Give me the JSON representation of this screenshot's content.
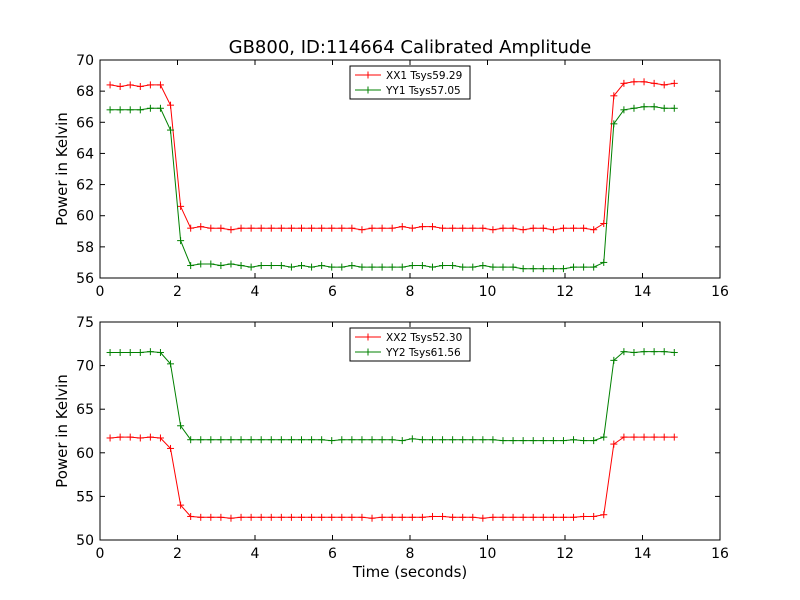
{
  "chart_data": {
    "title": "GB800, ID:114664 Calibrated Amplitude",
    "panels": [
      {
        "type": "line",
        "xlabel": "",
        "ylabel": "Power in Kelvin",
        "xlim": [
          0,
          16
        ],
        "ylim": [
          56,
          70
        ],
        "xticks": [
          0,
          2,
          4,
          6,
          8,
          10,
          12,
          14,
          16
        ],
        "yticks": [
          56,
          58,
          60,
          62,
          64,
          66,
          68,
          70
        ],
        "legend_position": "top-center",
        "x": [
          0.26,
          0.52,
          0.78,
          1.04,
          1.3,
          1.56,
          1.82,
          2.08,
          2.34,
          2.6,
          2.86,
          3.12,
          3.38,
          3.64,
          3.9,
          4.16,
          4.42,
          4.68,
          4.94,
          5.2,
          5.46,
          5.72,
          5.98,
          6.24,
          6.5,
          6.76,
          7.02,
          7.28,
          7.54,
          7.8,
          8.06,
          8.32,
          8.58,
          8.84,
          9.1,
          9.36,
          9.62,
          9.88,
          10.14,
          10.4,
          10.66,
          10.92,
          11.18,
          11.44,
          11.7,
          11.96,
          12.22,
          12.48,
          12.74,
          13.0,
          13.26,
          13.52,
          13.78,
          14.04,
          14.3,
          14.56,
          14.82
        ],
        "series": [
          {
            "name": "XX1 Tsys59.29",
            "color": "#ff0000",
            "values": [
              68.4,
              68.3,
              68.4,
              68.3,
              68.4,
              68.4,
              67.1,
              60.6,
              59.2,
              59.3,
              59.2,
              59.2,
              59.1,
              59.2,
              59.2,
              59.2,
              59.2,
              59.2,
              59.2,
              59.2,
              59.2,
              59.2,
              59.2,
              59.2,
              59.2,
              59.1,
              59.2,
              59.2,
              59.2,
              59.3,
              59.2,
              59.3,
              59.3,
              59.2,
              59.2,
              59.2,
              59.2,
              59.2,
              59.1,
              59.2,
              59.2,
              59.1,
              59.2,
              59.2,
              59.1,
              59.2,
              59.2,
              59.2,
              59.1,
              59.5,
              67.7,
              68.5,
              68.6,
              68.6,
              68.5,
              68.4,
              68.5
            ]
          },
          {
            "name": "YY1 Tsys57.05",
            "color": "#008000",
            "values": [
              66.8,
              66.8,
              66.8,
              66.8,
              66.9,
              66.9,
              65.5,
              58.4,
              56.8,
              56.9,
              56.9,
              56.8,
              56.9,
              56.8,
              56.7,
              56.8,
              56.8,
              56.8,
              56.7,
              56.8,
              56.7,
              56.8,
              56.7,
              56.7,
              56.8,
              56.7,
              56.7,
              56.7,
              56.7,
              56.7,
              56.8,
              56.8,
              56.7,
              56.8,
              56.8,
              56.7,
              56.7,
              56.8,
              56.7,
              56.7,
              56.7,
              56.6,
              56.6,
              56.6,
              56.6,
              56.6,
              56.7,
              56.7,
              56.7,
              57.0,
              65.9,
              66.8,
              66.9,
              67.0,
              67.0,
              66.9,
              66.9
            ]
          }
        ]
      },
      {
        "type": "line",
        "xlabel": "Time (seconds)",
        "ylabel": "Power in Kelvin",
        "xlim": [
          0,
          16
        ],
        "ylim": [
          50,
          75
        ],
        "xticks": [
          0,
          2,
          4,
          6,
          8,
          10,
          12,
          14,
          16
        ],
        "yticks": [
          50,
          55,
          60,
          65,
          70,
          75
        ],
        "legend_position": "top-center",
        "x": [
          0.26,
          0.52,
          0.78,
          1.04,
          1.3,
          1.56,
          1.82,
          2.08,
          2.34,
          2.6,
          2.86,
          3.12,
          3.38,
          3.64,
          3.9,
          4.16,
          4.42,
          4.68,
          4.94,
          5.2,
          5.46,
          5.72,
          5.98,
          6.24,
          6.5,
          6.76,
          7.02,
          7.28,
          7.54,
          7.8,
          8.06,
          8.32,
          8.58,
          8.84,
          9.1,
          9.36,
          9.62,
          9.88,
          10.14,
          10.4,
          10.66,
          10.92,
          11.18,
          11.44,
          11.7,
          11.96,
          12.22,
          12.48,
          12.74,
          13.0,
          13.26,
          13.52,
          13.78,
          14.04,
          14.3,
          14.56,
          14.82
        ],
        "series": [
          {
            "name": "XX2 Tsys52.30",
            "color": "#ff0000",
            "values": [
              61.7,
              61.8,
              61.8,
              61.7,
              61.8,
              61.7,
              60.5,
              54.0,
              52.7,
              52.6,
              52.6,
              52.6,
              52.5,
              52.6,
              52.6,
              52.6,
              52.6,
              52.6,
              52.6,
              52.6,
              52.6,
              52.6,
              52.6,
              52.6,
              52.6,
              52.6,
              52.5,
              52.6,
              52.6,
              52.6,
              52.6,
              52.6,
              52.7,
              52.7,
              52.6,
              52.6,
              52.6,
              52.5,
              52.6,
              52.6,
              52.6,
              52.6,
              52.6,
              52.6,
              52.6,
              52.6,
              52.6,
              52.7,
              52.7,
              52.9,
              61.0,
              61.8,
              61.8,
              61.8,
              61.8,
              61.8,
              61.8
            ]
          },
          {
            "name": "YY2 Tsys61.56",
            "color": "#008000",
            "values": [
              71.5,
              71.5,
              71.5,
              71.5,
              71.6,
              71.5,
              70.2,
              63.1,
              61.5,
              61.5,
              61.5,
              61.5,
              61.5,
              61.5,
              61.5,
              61.5,
              61.5,
              61.5,
              61.5,
              61.5,
              61.5,
              61.5,
              61.4,
              61.5,
              61.5,
              61.5,
              61.5,
              61.5,
              61.5,
              61.4,
              61.6,
              61.5,
              61.5,
              61.5,
              61.5,
              61.5,
              61.5,
              61.5,
              61.5,
              61.4,
              61.4,
              61.4,
              61.4,
              61.4,
              61.4,
              61.4,
              61.5,
              61.4,
              61.4,
              61.8,
              70.6,
              71.6,
              71.5,
              71.6,
              71.6,
              71.6,
              71.5
            ]
          }
        ]
      }
    ]
  }
}
